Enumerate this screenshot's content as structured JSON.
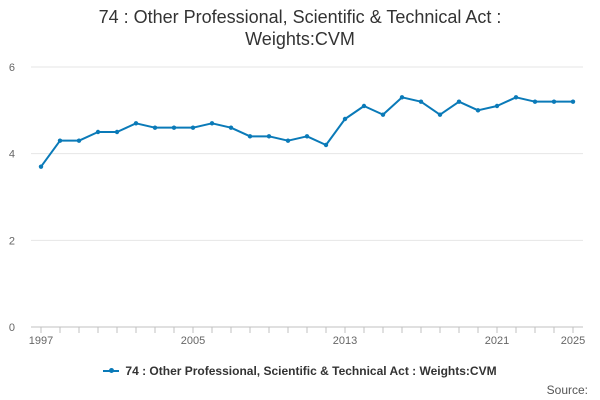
{
  "chart_data": {
    "type": "line",
    "title_line1": "74 : Other Professional, Scientific & Technical Act :",
    "title_line2": "Weights:CVM",
    "xlabel": "",
    "ylabel": "",
    "x": [
      1997,
      1998,
      1999,
      2000,
      2001,
      2002,
      2003,
      2004,
      2005,
      2006,
      2007,
      2008,
      2009,
      2010,
      2011,
      2012,
      2013,
      2014,
      2015,
      2016,
      2017,
      2018,
      2019,
      2020,
      2021,
      2022,
      2023,
      2024,
      2025
    ],
    "series": [
      {
        "name": "74 : Other Professional, Scientific & Technical Act : Weights:CVM",
        "color": "#0a7ab8",
        "values": [
          3.7,
          4.3,
          4.3,
          4.5,
          4.5,
          4.7,
          4.6,
          4.6,
          4.6,
          4.7,
          4.6,
          4.4,
          4.4,
          4.3,
          4.4,
          4.2,
          4.8,
          5.1,
          4.9,
          5.3,
          5.2,
          4.9,
          5.2,
          5.0,
          5.1,
          5.3,
          5.2,
          5.2,
          5.2
        ]
      }
    ],
    "ylim": [
      0,
      6
    ],
    "yticks": [
      0,
      2,
      4,
      6
    ],
    "xtick_labels": [
      "1997",
      "2005",
      "2013",
      "2021",
      "2025"
    ],
    "grid": true,
    "legend_position": "bottom"
  },
  "source_label": "Source:"
}
